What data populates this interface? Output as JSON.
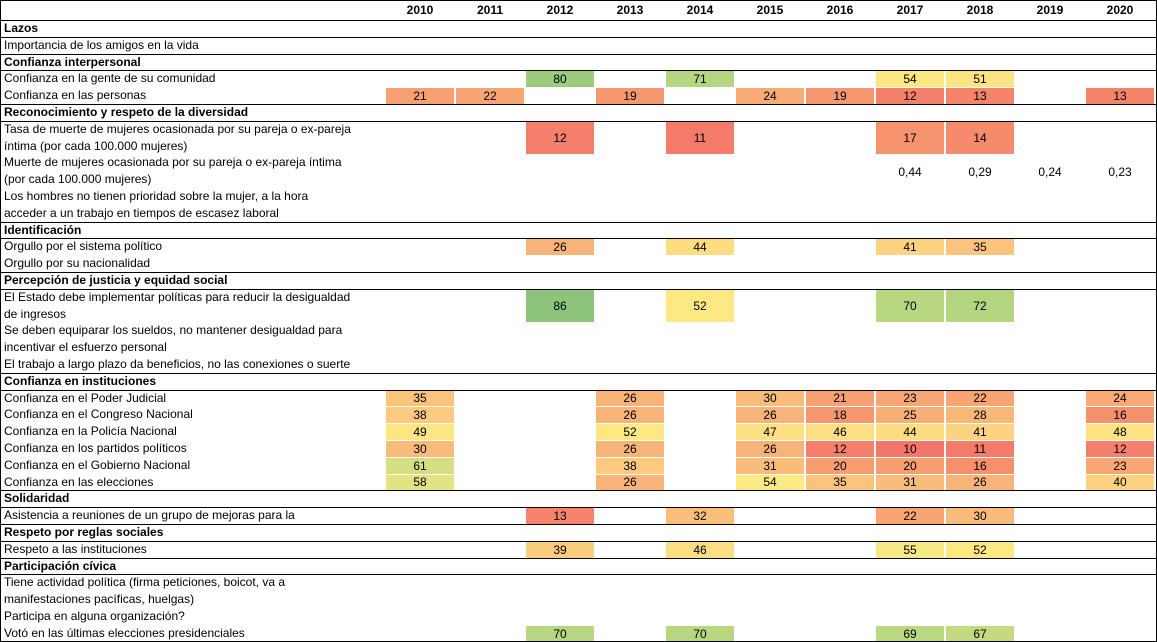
{
  "header": {
    "years": [
      2010,
      2011,
      2012,
      2013,
      2014,
      2015,
      2016,
      2017,
      2018,
      2019,
      2020
    ]
  },
  "sections": [
    {
      "title": "Lazos",
      "rows": [
        {
          "label": [
            "Importancia de los amigos en la vida"
          ]
        }
      ]
    },
    {
      "title": "Confianza interpersonal",
      "rows": [
        {
          "label": [
            "Confianza en la gente de su comunidad"
          ],
          "values": [
            null,
            null,
            80,
            null,
            71,
            null,
            null,
            54,
            51,
            null,
            null
          ],
          "colors": [
            null,
            null,
            "#9bcb7d",
            null,
            "#b5d580",
            null,
            null,
            "#fde783",
            "#fde482",
            null,
            null
          ]
        },
        {
          "label": [
            "Confianza en las personas"
          ],
          "values": [
            21,
            22,
            null,
            19,
            null,
            24,
            19,
            12,
            13,
            null,
            13
          ],
          "colors": [
            "#f7a072",
            "#f8a573",
            null,
            "#f6986f",
            null,
            "#f8ab75",
            "#f6986f",
            "#f47f6a",
            "#f5846b",
            null,
            "#f5846b"
          ]
        }
      ]
    },
    {
      "title": "Reconocimiento y respeto de la diversidad",
      "rows": [
        {
          "label": [
            "Tasa de muerte de mujeres ocasionada por su pareja o ex-pareja",
            "íntima (por cada 100.000 mujeres)"
          ],
          "values": [
            null,
            null,
            12,
            null,
            11,
            null,
            null,
            17,
            14,
            null,
            null
          ],
          "colors": [
            null,
            null,
            "#f47f6a",
            null,
            "#f47b69",
            null,
            null,
            "#f6936e",
            "#f58a6c",
            null,
            null
          ]
        },
        {
          "label": [
            "Muerte de mujeres ocasionada por su pareja o ex-pareja íntima",
            "(por cada 100.000 mujeres)"
          ],
          "values": [
            null,
            null,
            null,
            null,
            null,
            null,
            null,
            "0,44",
            "0,29",
            "0,24",
            "0,23"
          ]
        },
        {
          "label": [
            "Los hombres no tienen prioridad sobre la mujer, a la hora",
            "acceder a un trabajo en tiempos de escasez laboral"
          ]
        }
      ]
    },
    {
      "title": "Identificación",
      "rows": [
        {
          "label": [
            "Orgullo por el sistema político"
          ],
          "values": [
            null,
            null,
            26,
            null,
            44,
            null,
            null,
            41,
            35,
            null,
            null
          ],
          "colors": [
            null,
            null,
            "#f8b378",
            null,
            "#fddc82",
            null,
            null,
            "#fcd380",
            "#fbc37c",
            null,
            null
          ]
        },
        {
          "label": [
            "Orgullo por su nacionalidad"
          ]
        }
      ]
    },
    {
      "title": "Percepción de justicia y equidad social",
      "rows": [
        {
          "label": [
            "El Estado debe implementar políticas para reducir la desigualdad",
            "de ingresos"
          ],
          "values": [
            null,
            null,
            86,
            null,
            52,
            null,
            null,
            70,
            72,
            null,
            null
          ],
          "colors": [
            null,
            null,
            "#8bc47a",
            null,
            "#fee883",
            null,
            null,
            "#b9d780",
            "#b3d57f",
            null,
            null
          ]
        },
        {
          "label": [
            "Se deben equiparar los sueldos, no mantener desigualdad para",
            "incentivar el esfuerzo personal"
          ]
        },
        {
          "label": [
            "El trabajo a largo plazo da beneficios, no las conexiones o suerte"
          ]
        }
      ]
    },
    {
      "title": "Confianza en instituciones",
      "rows": [
        {
          "label": [
            "Confianza en el Poder Judicial"
          ],
          "values": [
            35,
            null,
            null,
            26,
            null,
            30,
            21,
            23,
            22,
            null,
            24
          ],
          "colors": [
            "#fbc37c",
            null,
            null,
            "#f8b378",
            null,
            "#f9bb79",
            "#f7a072",
            "#f8a774",
            "#f8a573",
            null,
            "#f8ab75"
          ]
        },
        {
          "label": [
            "Confianza en el Congreso Nacional"
          ],
          "values": [
            38,
            null,
            null,
            26,
            null,
            26,
            18,
            25,
            28,
            null,
            16
          ],
          "colors": [
            "#fbca7e",
            null,
            null,
            "#f8b378",
            null,
            "#f8b378",
            "#f6966e",
            "#f8af76",
            "#f9b778",
            null,
            "#f5906d"
          ]
        },
        {
          "label": [
            "Confianza en la Policía Nacional"
          ],
          "values": [
            49,
            null,
            null,
            52,
            null,
            47,
            46,
            44,
            41,
            null,
            48
          ],
          "colors": [
            "#fee583",
            null,
            null,
            "#fee883",
            null,
            "#fde082",
            "#fdde82",
            "#fddc82",
            "#fcd380",
            null,
            "#fde382"
          ]
        },
        {
          "label": [
            "Confianza en los partidos políticos"
          ],
          "values": [
            30,
            null,
            null,
            26,
            null,
            26,
            12,
            10,
            11,
            null,
            12
          ],
          "colors": [
            "#f9bb79",
            null,
            null,
            "#f8b378",
            null,
            "#f8b378",
            "#f47f6a",
            "#f47669",
            "#f47b69",
            null,
            "#f47f6a"
          ]
        },
        {
          "label": [
            "Confianza en el Gobierno Nacional"
          ],
          "values": [
            61,
            null,
            null,
            38,
            null,
            31,
            20,
            20,
            16,
            null,
            23
          ],
          "colors": [
            "#d5df82",
            null,
            null,
            "#fbca7e",
            null,
            "#f9bd7a",
            "#f79e71",
            "#f79e71",
            "#f5906d",
            null,
            "#f8a774"
          ]
        },
        {
          "label": [
            "Confianza en las elecciones"
          ],
          "values": [
            58,
            null,
            null,
            26,
            null,
            54,
            35,
            31,
            26,
            null,
            40
          ],
          "colors": [
            "#e3e383",
            null,
            null,
            "#f8b378",
            null,
            "#feea84",
            "#fbc37c",
            "#f9bd7a",
            "#f8b378",
            null,
            "#fcd17f"
          ]
        }
      ]
    },
    {
      "title": "Solidaridad",
      "rows": [
        {
          "label": [
            "Asistencia a reuniones de un grupo de mejoras para la"
          ],
          "values": [
            null,
            null,
            13,
            null,
            32,
            null,
            null,
            22,
            30,
            null,
            null
          ],
          "colors": [
            null,
            null,
            "#f5846b",
            null,
            "#fabf7a",
            null,
            null,
            "#f8a573",
            "#f9bb79",
            null,
            null
          ]
        }
      ]
    },
    {
      "title": "Respeto por reglas sociales",
      "rows": [
        {
          "label": [
            "Respeto a las instituciones"
          ],
          "values": [
            null,
            null,
            39,
            null,
            46,
            null,
            null,
            55,
            52,
            null,
            null
          ],
          "colors": [
            null,
            null,
            "#fbcc7e",
            null,
            "#fdde82",
            null,
            null,
            "#f6e884",
            "#fee883",
            null,
            null
          ]
        }
      ]
    },
    {
      "title": "Participación cívica",
      "rows": [
        {
          "label": [
            "Tiene actividad política (firma peticiones, boicot, va a",
            "manifestaciones pacíficas, huelgas)"
          ]
        },
        {
          "label": [
            "Participa en alguna organización?"
          ]
        },
        {
          "label": [
            "Votó en las últimas elecciones presidenciales"
          ],
          "values": [
            null,
            null,
            70,
            null,
            70,
            null,
            null,
            69,
            67,
            null,
            null
          ],
          "colors": [
            null,
            null,
            "#b9d780",
            null,
            "#b9d780",
            null,
            null,
            "#bcd881",
            "#c3da81",
            null,
            null
          ]
        }
      ]
    }
  ]
}
